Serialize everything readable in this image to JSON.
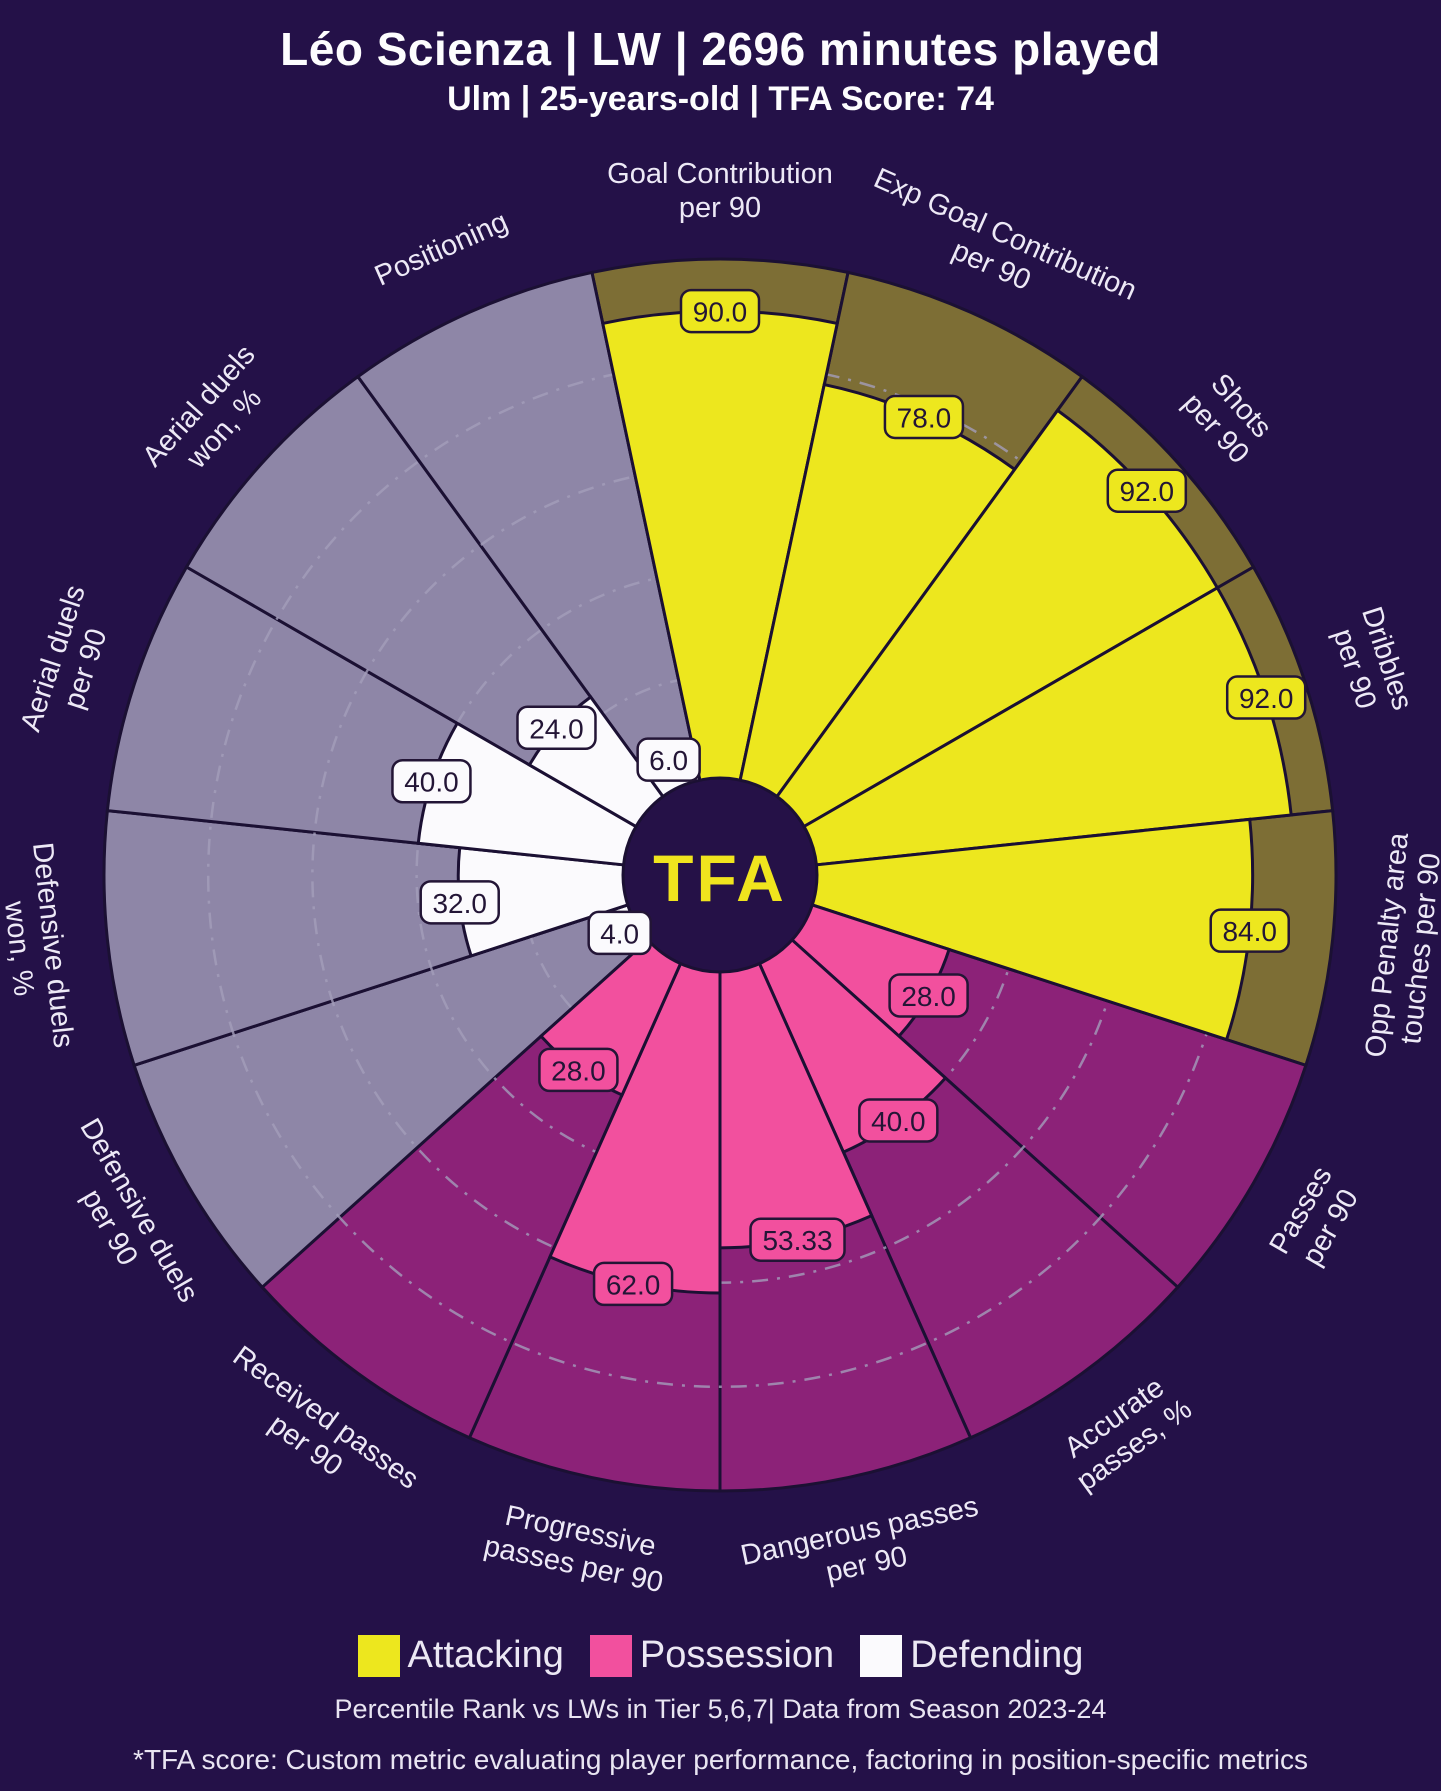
{
  "header": {
    "title": "Léo Scienza | LW | 2696 minutes played",
    "subtitle": "Ulm | 25-years-old | TFA Score: 74"
  },
  "center_logo": "TFA",
  "colors": {
    "background": "#241148",
    "slice_border": "#1B1033",
    "gridline": "#A49DBA",
    "badge_text": "#231536",
    "label_text": "#EDE9F6",
    "logo_text": "#F0E41E"
  },
  "legend": {
    "items": [
      {
        "label": "Attacking",
        "color": "#EDE71E"
      },
      {
        "label": "Possession",
        "color": "#F2509E"
      },
      {
        "label": "Defending",
        "color": "#FBFAFD"
      }
    ]
  },
  "footer": {
    "line1": "Percentile Rank vs LWs in Tier 5,6,7| Data from Season 2023-24",
    "line2": "*TFA score: Custom metric evaluating player performance, factoring in position-specific metrics"
  },
  "chart_data": {
    "type": "pizza-radar",
    "scale": [
      0,
      100
    ],
    "gridlines": [
      20,
      40,
      60,
      80
    ],
    "groups": {
      "attacking": {
        "fill": "#EDE71E",
        "empty": "#7D6E35"
      },
      "possession": {
        "fill": "#F2509E",
        "empty": "#8C2278"
      },
      "defending": {
        "fill": "#FBFAFD",
        "empty": "#8E86A7"
      }
    },
    "params": [
      {
        "label": "Goal Contribution per 90",
        "lines": [
          "Goal Contribution",
          "per 90"
        ],
        "value": 90.0,
        "display": "90.0",
        "group": "attacking"
      },
      {
        "label": "Exp Goal Contribution per 90",
        "lines": [
          "Exp Goal Contribution",
          "per 90"
        ],
        "value": 78.0,
        "display": "78.0",
        "group": "attacking"
      },
      {
        "label": "Shots per 90",
        "lines": [
          "Shots",
          "per 90"
        ],
        "value": 92.0,
        "display": "92.0",
        "group": "attacking"
      },
      {
        "label": "Dribbles per 90",
        "lines": [
          "Dribbles",
          "per 90"
        ],
        "value": 92.0,
        "display": "92.0",
        "group": "attacking"
      },
      {
        "label": "Opp Penalty area touches per 90",
        "lines": [
          "Opp Penalty area",
          "touches per 90"
        ],
        "value": 84.0,
        "display": "84.0",
        "group": "attacking"
      },
      {
        "label": "Passes per 90",
        "lines": [
          "Passes",
          "per 90"
        ],
        "value": 28.0,
        "display": "28.0",
        "group": "possession"
      },
      {
        "label": "Accurate passes, %",
        "lines": [
          "Accurate",
          "passes, %"
        ],
        "value": 40.0,
        "display": "40.0",
        "group": "possession"
      },
      {
        "label": "Dangerous passes per 90",
        "lines": [
          "Dangerous passes",
          "per 90"
        ],
        "value": 53.33,
        "display": "53.33",
        "group": "possession"
      },
      {
        "label": "Progressive passes per 90",
        "lines": [
          "Progressive",
          "passes per 90"
        ],
        "value": 62.0,
        "display": "62.0",
        "group": "possession"
      },
      {
        "label": "Received passes per 90",
        "lines": [
          "Received passes",
          "per 90"
        ],
        "value": 28.0,
        "display": "28.0",
        "group": "possession"
      },
      {
        "label": "Defensive duels per 90",
        "lines": [
          "Defensive duels",
          "per 90"
        ],
        "value": 4.0,
        "display": "4.0",
        "group": "defending"
      },
      {
        "label": "Defensive duels won, %",
        "lines": [
          "Defensive duels",
          "won, %"
        ],
        "value": 32.0,
        "display": "32.0",
        "group": "defending"
      },
      {
        "label": "Aerial duels per 90",
        "lines": [
          "Aerial duels",
          "per 90"
        ],
        "value": 40.0,
        "display": "40.0",
        "group": "defending"
      },
      {
        "label": "Aerial duels won, %",
        "lines": [
          "Aerial duels",
          "won, %"
        ],
        "value": 24.0,
        "display": "24.0",
        "group": "defending"
      },
      {
        "label": "Positioning",
        "lines": [
          "Positioning"
        ],
        "value": 6.0,
        "display": "6.0",
        "group": "defending"
      }
    ]
  }
}
